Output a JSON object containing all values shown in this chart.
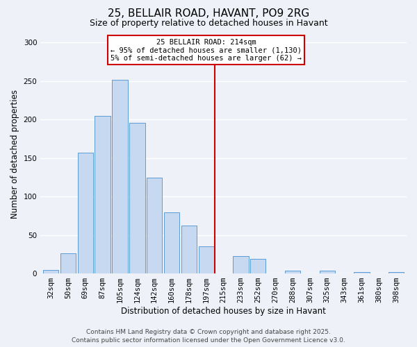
{
  "title": "25, BELLAIR ROAD, HAVANT, PO9 2RG",
  "subtitle": "Size of property relative to detached houses in Havant",
  "xlabel": "Distribution of detached houses by size in Havant",
  "ylabel": "Number of detached properties",
  "bin_labels": [
    "32sqm",
    "50sqm",
    "69sqm",
    "87sqm",
    "105sqm",
    "124sqm",
    "142sqm",
    "160sqm",
    "178sqm",
    "197sqm",
    "215sqm",
    "233sqm",
    "252sqm",
    "270sqm",
    "288sqm",
    "307sqm",
    "325sqm",
    "343sqm",
    "361sqm",
    "380sqm",
    "398sqm"
  ],
  "bar_values": [
    5,
    26,
    157,
    205,
    251,
    196,
    124,
    79,
    62,
    35,
    0,
    23,
    19,
    0,
    4,
    0,
    4,
    0,
    2,
    0,
    2
  ],
  "bar_color": "#c6d9f0",
  "bar_edge_color": "#5b9bd5",
  "vline_x": 9.5,
  "vline_color": "#cc0000",
  "annotation_text": "25 BELLAIR ROAD: 214sqm\n← 95% of detached houses are smaller (1,130)\n5% of semi-detached houses are larger (62) →",
  "annotation_box_color": "#ffffff",
  "annotation_box_edge": "#cc0000",
  "ylim": [
    0,
    310
  ],
  "yticks": [
    0,
    50,
    100,
    150,
    200,
    250,
    300
  ],
  "footer_line1": "Contains HM Land Registry data © Crown copyright and database right 2025.",
  "footer_line2": "Contains public sector information licensed under the Open Government Licence v3.0.",
  "bg_color": "#eef2f8",
  "grid_color": "#ffffff",
  "title_fontsize": 11,
  "subtitle_fontsize": 9,
  "label_fontsize": 8.5,
  "tick_fontsize": 7.5,
  "footer_fontsize": 6.5,
  "ann_fontsize": 7.5
}
